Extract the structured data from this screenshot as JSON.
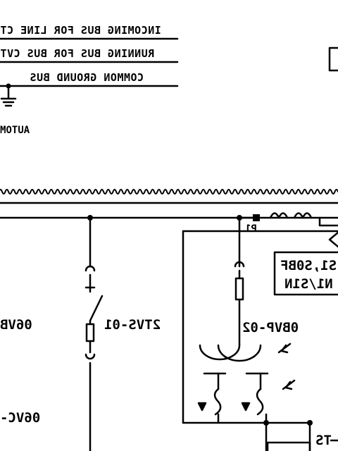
{
  "bus_labels": {
    "incoming": "INCOMING BUS FOR LINE CT",
    "running": "RUNNING BUS FOR BUS CVT",
    "ground": "COMMON GROUND BUS"
  },
  "auto_label": "AUTOM",
  "device_labels": {
    "left_top": "06VB",
    "left_bottom": "06VC-",
    "switch_tag": "2TVS-01",
    "transformer_tag": "0BVP-02",
    "terminal_p1": "P1",
    "box_line1": "S1,S0BF",
    "box_line2": "N1/S1N",
    "bottom_right": "TS"
  },
  "colors": {
    "line": "#000000",
    "background": "#ffffff"
  }
}
